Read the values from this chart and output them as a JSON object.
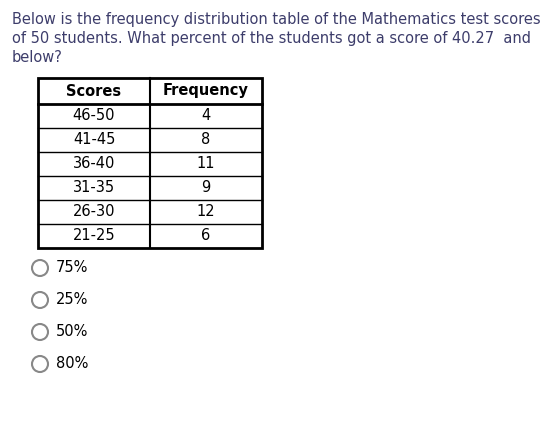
{
  "question_line1": "Below is the frequency distribution table of the Mathematics test scores",
  "question_line2": "of 50 students. What percent of the students got a score of 40.27  and",
  "question_line3": "below?",
  "table_headers": [
    "Scores",
    "Frequency"
  ],
  "table_rows": [
    [
      "46-50",
      "4"
    ],
    [
      "41-45",
      "8"
    ],
    [
      "36-40",
      "11"
    ],
    [
      "31-35",
      "9"
    ],
    [
      "26-30",
      "12"
    ],
    [
      "21-25",
      "6"
    ]
  ],
  "options": [
    "75%",
    "25%",
    "50%",
    "80%"
  ],
  "bg_color": "#ffffff",
  "text_color": "#000000",
  "question_color": "#3d3d6b",
  "font_size_question": 10.5,
  "font_size_table": 10.5,
  "font_size_options": 10.5
}
